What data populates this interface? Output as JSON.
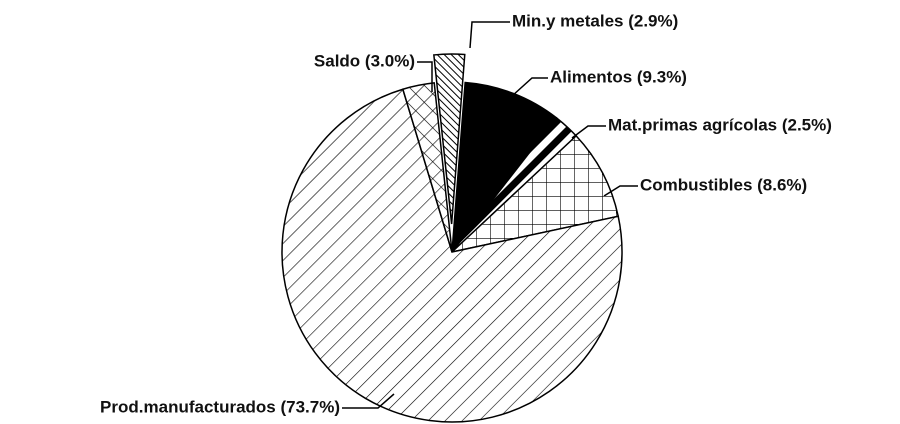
{
  "chart_data": {
    "type": "pie",
    "categories": [
      "Min.y metales (2.9%)",
      "Alimentos (9.3%)",
      "Mat.primas agrícolas (2.5%)",
      "Combustibles (8.6%)",
      "Prod.manufacturados (73.7%)",
      "Saldo (3.0%)"
    ],
    "values": [
      2.9,
      9.3,
      2.5,
      8.6,
      73.7,
      3.0
    ],
    "patterns": [
      "dense-hatch",
      "solid",
      "stripes",
      "grid",
      "diagonal",
      "crosshatch"
    ]
  }
}
